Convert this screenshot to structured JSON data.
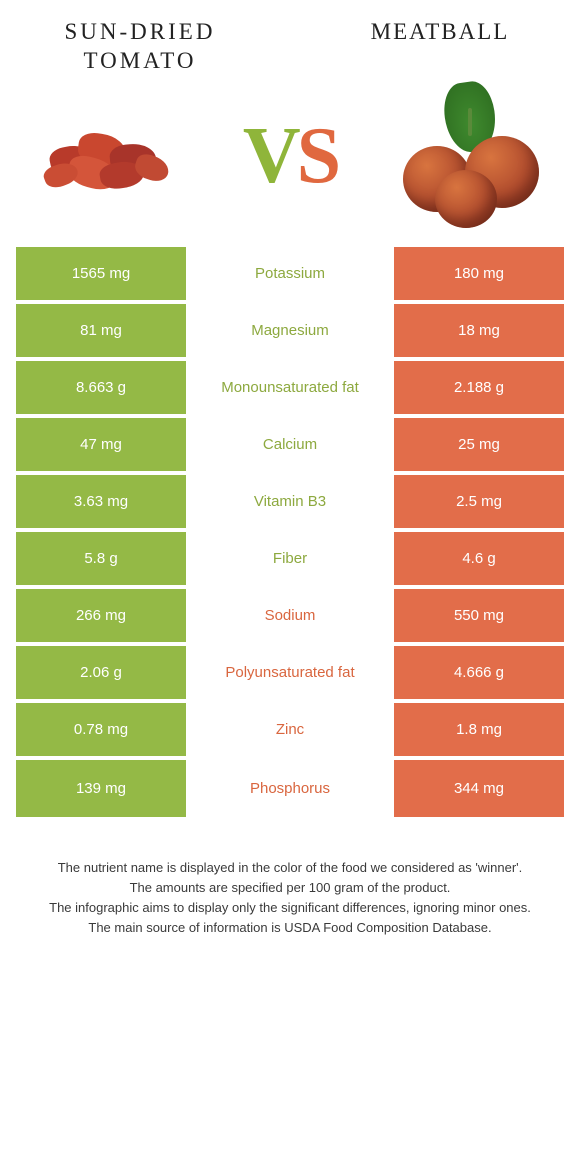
{
  "colors": {
    "left_bg": "#94b946",
    "right_bg": "#e26d4a",
    "left_text": "#8da93f",
    "right_text": "#d9663f",
    "body_text": "#333333"
  },
  "foods": {
    "left": "Sun-dried tomato",
    "right": "Meatball"
  },
  "vs": {
    "v": "V",
    "s": "S"
  },
  "rows": [
    {
      "left": "1565 mg",
      "label": "Potassium",
      "right": "180 mg",
      "winner": "left"
    },
    {
      "left": "81 mg",
      "label": "Magnesium",
      "right": "18 mg",
      "winner": "left"
    },
    {
      "left": "8.663 g",
      "label": "Monounsaturated fat",
      "right": "2.188 g",
      "winner": "left"
    },
    {
      "left": "47 mg",
      "label": "Calcium",
      "right": "25 mg",
      "winner": "left"
    },
    {
      "left": "3.63 mg",
      "label": "Vitamin B3",
      "right": "2.5 mg",
      "winner": "left"
    },
    {
      "left": "5.8 g",
      "label": "Fiber",
      "right": "4.6 g",
      "winner": "left"
    },
    {
      "left": "266 mg",
      "label": "Sodium",
      "right": "550 mg",
      "winner": "right"
    },
    {
      "left": "2.06 g",
      "label": "Polyunsaturated fat",
      "right": "4.666 g",
      "winner": "right"
    },
    {
      "left": "0.78 mg",
      "label": "Zinc",
      "right": "1.8 mg",
      "winner": "right"
    },
    {
      "left": "139 mg",
      "label": "Phosphorus",
      "right": "344 mg",
      "winner": "right"
    }
  ],
  "footer": [
    "The nutrient name is displayed in the color of the food we considered as 'winner'.",
    "The amounts are specified per 100 gram of the product.",
    "The infographic aims to display only the significant differences, ignoring minor ones.",
    "The main source of information is USDA Food Composition Database."
  ]
}
